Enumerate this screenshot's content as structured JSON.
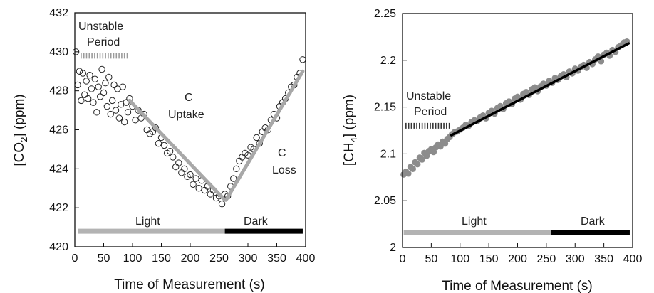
{
  "chart_data": [
    {
      "type": "scatter",
      "xlabel": "Time of Measurement (s)",
      "ylabel": {
        "prefix": "[CO",
        "sub": "2",
        "suffix": "] (ppm)"
      },
      "xlim": [
        0,
        400
      ],
      "ylim": [
        420,
        432
      ],
      "x_ticks": [
        "0",
        "50",
        "100",
        "150",
        "200",
        "250",
        "300",
        "350",
        "400"
      ],
      "y_ticks": [
        "420",
        "422",
        "424",
        "426",
        "428",
        "430",
        "432"
      ],
      "grid": false,
      "colors": {
        "points": "#222222",
        "fit": "#a8a8a8",
        "light_bar": "#b3b3b3",
        "dark_bar": "#000000"
      },
      "annotations": {
        "unstable_line1": "Unstable",
        "unstable_line2": "Period",
        "uptake_line1": "C",
        "uptake_line2": "Uptake",
        "loss_line1": "C",
        "loss_line2": "Loss",
        "light": "Light",
        "dark": "Dark"
      },
      "unstable_period": {
        "x": [
          10,
          92
        ],
        "y": 429.8
      },
      "phase_bars": {
        "y": 420.8,
        "light": [
          5,
          260
        ],
        "dark": [
          260,
          395
        ]
      },
      "fit_segments": [
        {
          "x": [
            95,
            260
          ],
          "y": [
            427.5,
            422.4
          ]
        },
        {
          "x": [
            262,
            395
          ],
          "y": [
            422.4,
            429.0
          ]
        }
      ],
      "series": [
        {
          "x": [
            2,
            5,
            8,
            11,
            14,
            17,
            20,
            23,
            26,
            29,
            32,
            35,
            38,
            41,
            44,
            47,
            50,
            53,
            56,
            59,
            62,
            65,
            68,
            71,
            74,
            77,
            80,
            83,
            86,
            89,
            92,
            95,
            100,
            105,
            110,
            115,
            120,
            125,
            130,
            135,
            140,
            145,
            150,
            155,
            160,
            165,
            170,
            175,
            180,
            185,
            190,
            195,
            200,
            205,
            210,
            215,
            220,
            225,
            230,
            235,
            240,
            245,
            250,
            255,
            260,
            265,
            270,
            275,
            280,
            285,
            290,
            295,
            300,
            305,
            310,
            315,
            320,
            325,
            330,
            335,
            340,
            345,
            350,
            355,
            360,
            365,
            370,
            375,
            380,
            385,
            390,
            395
          ],
          "y": [
            430.0,
            428.3,
            429.0,
            427.5,
            428.9,
            427.8,
            428.5,
            427.6,
            428.8,
            428.1,
            427.4,
            428.6,
            426.9,
            428.2,
            427.7,
            429.1,
            427.9,
            428.4,
            427.2,
            428.7,
            426.8,
            427.5,
            428.3,
            427.0,
            428.1,
            426.6,
            427.3,
            428.2,
            426.4,
            427.4,
            426.9,
            427.6,
            427.2,
            426.5,
            427.0,
            426.6,
            426.8,
            426.0,
            425.8,
            425.9,
            426.1,
            425.3,
            425.6,
            425.2,
            424.8,
            424.9,
            424.6,
            424.1,
            424.3,
            423.8,
            424.0,
            423.6,
            423.7,
            423.2,
            423.5,
            423.0,
            423.4,
            422.9,
            423.1,
            422.7,
            422.9,
            422.5,
            422.6,
            422.2,
            422.7,
            422.6,
            423.1,
            423.5,
            424.0,
            424.4,
            424.6,
            424.8,
            424.7,
            425.1,
            425.0,
            425.6,
            425.3,
            425.9,
            426.1,
            426.0,
            426.5,
            426.8,
            426.6,
            427.2,
            427.4,
            427.6,
            427.9,
            428.2,
            428.3,
            428.7,
            428.9,
            429.6
          ]
        }
      ]
    },
    {
      "type": "scatter",
      "xlabel": "Time of Measurement (s)",
      "ylabel": {
        "prefix": "[CH",
        "sub": "4",
        "suffix": "] (ppm)"
      },
      "xlim": [
        0,
        400
      ],
      "ylim": [
        2,
        2.25
      ],
      "x_ticks": [
        "0",
        "50",
        "100",
        "150",
        "200",
        "250",
        "300",
        "350",
        "400"
      ],
      "y_ticks": [
        "2",
        "2.05",
        "2.1",
        "2.15",
        "2.2",
        "2.25"
      ],
      "grid": false,
      "colors": {
        "points": "#8c8c8c",
        "fit": "#000000",
        "light_bar": "#b3b3b3",
        "dark_bar": "#000000"
      },
      "annotations": {
        "unstable_line1": "Unstable",
        "unstable_line2": "Period",
        "light": "Light",
        "dark": "Dark"
      },
      "unstable_period": {
        "x": [
          5,
          82
        ],
        "y": 2.13
      },
      "phase_bars": {
        "y": 2.016,
        "light": [
          2,
          258
        ],
        "dark": [
          258,
          395
        ]
      },
      "fit_segments": [
        {
          "x": [
            85,
            393
          ],
          "y": [
            2.12,
            2.218
          ]
        }
      ],
      "series": [
        {
          "x": [
            2,
            6,
            10,
            14,
            18,
            22,
            26,
            30,
            34,
            38,
            42,
            46,
            50,
            54,
            58,
            62,
            66,
            70,
            74,
            78,
            82,
            86,
            90,
            95,
            100,
            105,
            110,
            115,
            120,
            125,
            130,
            135,
            140,
            145,
            150,
            155,
            160,
            165,
            170,
            175,
            180,
            185,
            190,
            195,
            200,
            205,
            210,
            215,
            220,
            225,
            230,
            235,
            240,
            245,
            250,
            255,
            260,
            265,
            270,
            275,
            280,
            285,
            290,
            295,
            300,
            305,
            310,
            315,
            320,
            325,
            330,
            335,
            340,
            345,
            350,
            355,
            360,
            365,
            370,
            375,
            380,
            385,
            390
          ],
          "y": [
            2.078,
            2.081,
            2.079,
            2.086,
            2.084,
            2.091,
            2.089,
            2.096,
            2.094,
            2.101,
            2.098,
            2.103,
            2.105,
            2.102,
            2.107,
            2.11,
            2.108,
            2.113,
            2.111,
            2.116,
            2.118,
            2.121,
            2.123,
            2.124,
            2.126,
            2.128,
            2.131,
            2.13,
            2.134,
            2.136,
            2.135,
            2.139,
            2.141,
            2.138,
            2.144,
            2.146,
            2.143,
            2.149,
            2.151,
            2.148,
            2.154,
            2.156,
            2.153,
            2.159,
            2.161,
            2.158,
            2.164,
            2.166,
            2.163,
            2.169,
            2.171,
            2.167,
            2.172,
            2.175,
            2.173,
            2.178,
            2.176,
            2.181,
            2.179,
            2.183,
            2.185,
            2.182,
            2.188,
            2.186,
            2.191,
            2.189,
            2.193,
            2.195,
            2.192,
            2.198,
            2.196,
            2.201,
            2.204,
            2.199,
            2.206,
            2.208,
            2.205,
            2.211,
            2.209,
            2.214,
            2.216,
            2.219,
            2.22
          ]
        }
      ]
    }
  ]
}
